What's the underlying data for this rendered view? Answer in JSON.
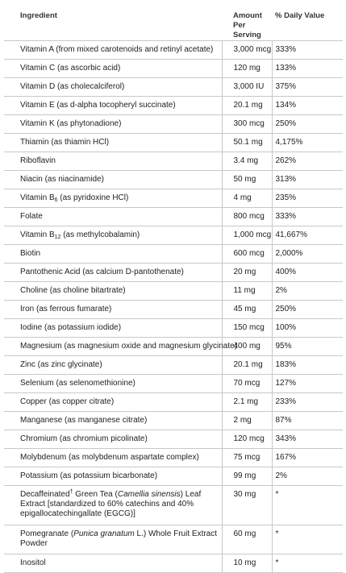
{
  "headers": {
    "ingredient": "Ingredient",
    "amount_line1": "Amount Per",
    "amount_line2": "Serving",
    "daily_value": "% Daily Value"
  },
  "rows": [
    {
      "ingredient": "Vitamin A (from mixed carotenoids and retinyl acetate)",
      "amount": "3,000 mcg",
      "dv": "333%"
    },
    {
      "ingredient": "Vitamin C (as ascorbic acid)",
      "amount": "120 mg",
      "dv": "133%"
    },
    {
      "ingredient": "Vitamin D (as cholecalciferol)",
      "amount": "3,000 IU",
      "dv": "375%"
    },
    {
      "ingredient": "Vitamin E (as d-alpha tocopheryl succinate)",
      "amount": "20.1 mg",
      "dv": "134%"
    },
    {
      "ingredient": "Vitamin K (as phytonadione)",
      "amount": "300 mcg",
      "dv": "250%"
    },
    {
      "ingredient": "Thiamin (as thiamin HCl)",
      "amount": "50.1 mg",
      "dv": "4,175%"
    },
    {
      "ingredient": "Riboflavin",
      "amount": "3.4 mg",
      "dv": "262%"
    },
    {
      "ingredient": "Niacin (as niacinamide)",
      "amount": "50 mg",
      "dv": "313%"
    },
    {
      "ingredient_pre": "Vitamin B",
      "ingredient_sub": "6",
      "ingredient_post": " (as pyridoxine HCl)",
      "amount": "4 mg",
      "dv": "235%"
    },
    {
      "ingredient": "Folate",
      "amount": "800 mcg",
      "dv": "333%"
    },
    {
      "ingredient_pre": "Vitamin B",
      "ingredient_sub": "12",
      "ingredient_post": " (as methylcobalamin)",
      "amount": "1,000 mcg",
      "dv": "41,667%"
    },
    {
      "ingredient": "Biotin",
      "amount": "600 mcg",
      "dv": "2,000%"
    },
    {
      "ingredient": "Pantothenic Acid (as calcium D-pantothenate)",
      "amount": "20 mg",
      "dv": "400%"
    },
    {
      "ingredient": "Choline (as choline bitartrate)",
      "amount": "11 mg",
      "dv": "2%"
    },
    {
      "ingredient": "Iron (as ferrous fumarate)",
      "amount": "45 mg",
      "dv": "250%"
    },
    {
      "ingredient": "Iodine (as potassium iodide)",
      "amount": "150 mcg",
      "dv": "100%"
    },
    {
      "ingredient": "Magnesium (as magnesium oxide and magnesium glycinate)",
      "amount": "400 mg",
      "dv": "95%"
    },
    {
      "ingredient": "Zinc (as zinc glycinate)",
      "amount": "20.1 mg",
      "dv": "183%"
    },
    {
      "ingredient": "Selenium (as selenomethionine)",
      "amount": "70 mcg",
      "dv": "127%"
    },
    {
      "ingredient": "Copper (as copper citrate)",
      "amount": "2.1 mg",
      "dv": "233%"
    },
    {
      "ingredient": "Manganese (as manganese citrate)",
      "amount": "2 mg",
      "dv": "87%"
    },
    {
      "ingredient": "Chromium (as chromium picolinate)",
      "amount": "120 mcg",
      "dv": "343%"
    },
    {
      "ingredient": "Molybdenum (as molybdenum aspartate complex)",
      "amount": "75 mcg",
      "dv": "167%"
    },
    {
      "ingredient": "Potassium (as potassium bicarbonate)",
      "amount": "99 mg",
      "dv": "2%"
    },
    {
      "ingredient_pre": "Decaffeinated",
      "ingredient_sup": "†",
      "ingredient_mid": " Green Tea (",
      "ingredient_ital": "Camellia sinensis",
      "ingredient_post": ") Leaf Extract [standardized to 60% catechins and 40% epigallocatechingallate (EGCG)]",
      "amount": "30 mg",
      "dv": "*"
    },
    {
      "ingredient_pre": "Pomegranate (",
      "ingredient_ital": "Punica granatum",
      "ingredient_post": " L.) Whole Fruit Extract Powder",
      "amount": "60 mg",
      "dv": "*"
    },
    {
      "ingredient": "Inositol",
      "amount": "10 mg",
      "dv": "*"
    }
  ]
}
